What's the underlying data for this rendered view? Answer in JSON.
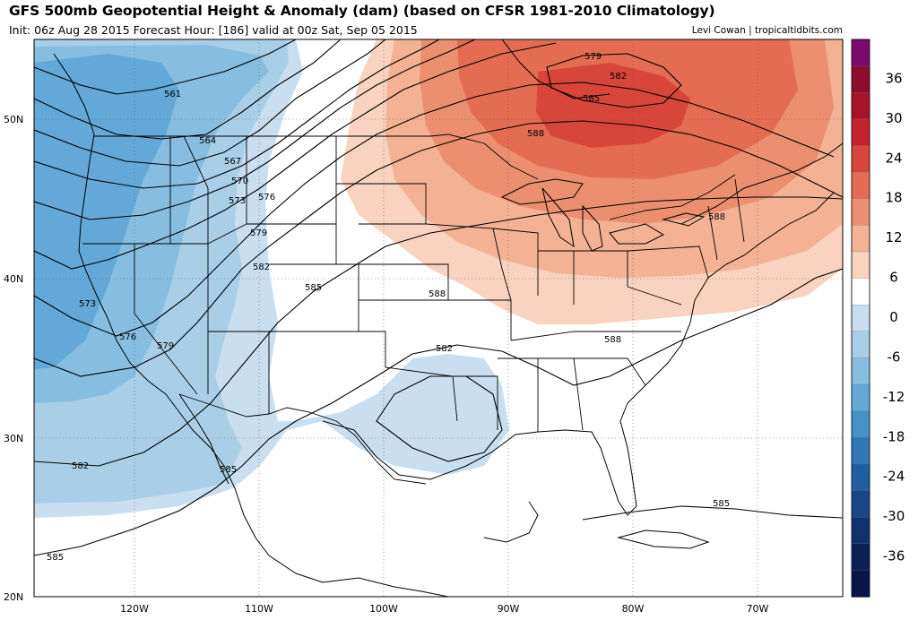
{
  "header": {
    "title": "GFS 500mb Geopotential Height & Anomaly (dam) (based on CFSR 1981-2010 Climatology)",
    "subtitle": "Init: 06z Aug 28 2015   Forecast Hour: [186]   valid at 00z Sat, Sep 05 2015",
    "credit": "Levi Cowan | tropicaltidbits.com"
  },
  "axes": {
    "lat_labels": [
      "50N",
      "40N",
      "30N",
      "20N"
    ],
    "lon_labels": [
      "120W",
      "110W",
      "100W",
      "90W",
      "80W",
      "70W"
    ]
  },
  "colorbar": {
    "tick_labels": [
      "36",
      "30",
      "24",
      "18",
      "12",
      "6",
      "0",
      "-6",
      "-12",
      "-18",
      "-24",
      "-30",
      "-36"
    ],
    "colors": [
      "#7b0a6e",
      "#8e0c2e",
      "#a8132b",
      "#c4222d",
      "#d8463b",
      "#e36c52",
      "#eb8f70",
      "#f3b294",
      "#f9d3bf",
      "#ffffff",
      "#c9dff0",
      "#a9cfe8",
      "#86bde0",
      "#63a8d6",
      "#4592c8",
      "#2f77b6",
      "#1f5ea2",
      "#174689",
      "#12326f",
      "#0d1f57",
      "#0b154a"
    ]
  },
  "contours": {
    "labels": [
      "561",
      "564",
      "567",
      "570",
      "573",
      "576",
      "579",
      "582",
      "585",
      "588",
      "573",
      "576",
      "579",
      "582",
      "585",
      "582",
      "585",
      "585",
      "588",
      "588",
      "588",
      "579",
      "582",
      "585",
      "588",
      "582",
      "585"
    ]
  }
}
